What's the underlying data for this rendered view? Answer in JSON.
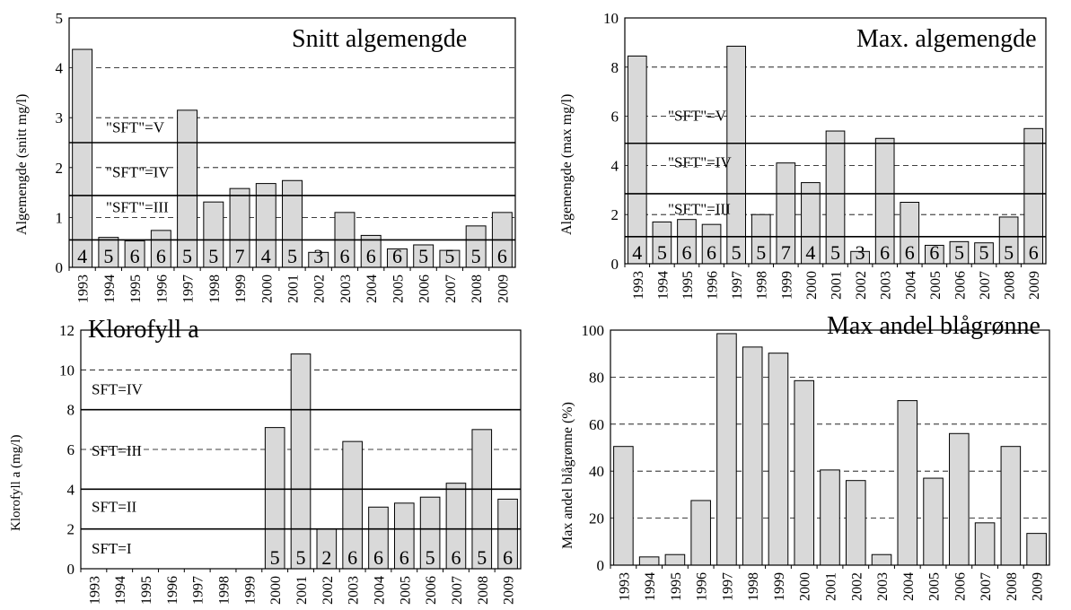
{
  "chart_data": [
    {
      "type": "bar",
      "title": "Snitt algemengde",
      "ylabel": "Algemengde  (snitt mg/l)",
      "categories": [
        "1993",
        "1994",
        "1995",
        "1996",
        "1997",
        "1998",
        "1999",
        "2000",
        "2001",
        "2002",
        "2003",
        "2004",
        "2005",
        "2006",
        "2007",
        "2008",
        "2009"
      ],
      "values": [
        4.37,
        0.6,
        0.53,
        0.74,
        3.15,
        1.31,
        1.58,
        1.68,
        1.74,
        0.3,
        1.1,
        0.64,
        0.37,
        0.45,
        0.34,
        0.83,
        1.1
      ],
      "sample_counts": [
        "4",
        "5",
        "6",
        "6",
        "5",
        "5",
        "7",
        "4",
        "5",
        "3",
        "6",
        "6",
        "6",
        "5",
        "5",
        "5",
        "6"
      ],
      "ylim": [
        0,
        5
      ],
      "yticks": [
        "0",
        "1",
        "2",
        "3",
        "4",
        "5"
      ],
      "grid": "dashed",
      "thresholds": [
        {
          "value": 2.5,
          "label": "\"SFT\"=V",
          "label_y": 2.8
        },
        {
          "value": 1.44,
          "label": "\"SFT\"=IV",
          "label_y": 1.9
        },
        {
          "value": 0.55,
          "label": "\"SFT\"=III",
          "label_y": 1.2
        }
      ]
    },
    {
      "type": "bar",
      "title": "Max. algemengde",
      "ylabel": "Algemengde  (max mg/l)",
      "categories": [
        "1993",
        "1994",
        "1995",
        "1996",
        "1997",
        "1998",
        "1999",
        "2000",
        "2001",
        "2002",
        "2003",
        "2004",
        "2005",
        "2006",
        "2007",
        "2008",
        "2009"
      ],
      "values": [
        8.45,
        1.7,
        1.8,
        1.6,
        8.85,
        2.0,
        4.1,
        3.3,
        5.4,
        0.5,
        5.1,
        2.5,
        0.75,
        0.9,
        0.85,
        1.9,
        5.5
      ],
      "sample_counts": [
        "4",
        "5",
        "6",
        "6",
        "5",
        "5",
        "7",
        "4",
        "5",
        "3",
        "6",
        "6",
        "6",
        "5",
        "5",
        "5",
        "6"
      ],
      "ylim": [
        0,
        10
      ],
      "yticks": [
        "0",
        "2",
        "4",
        "6",
        "8",
        "10"
      ],
      "grid": "dashed",
      "thresholds": [
        {
          "value": 4.9,
          "label": "\"SFT\"=V",
          "label_y": 6.0
        },
        {
          "value": 2.85,
          "label": "\"SFT\"=IV",
          "label_y": 4.1
        },
        {
          "value": 1.1,
          "label": "\"SFT\"=III",
          "label_y": 2.2
        }
      ]
    },
    {
      "type": "bar",
      "title": "Klorofyll a",
      "ylabel": "Klorofyll a (mg/l)",
      "categories": [
        "1993",
        "1994",
        "1995",
        "1996",
        "1997",
        "1998",
        "1999",
        "2000",
        "2001",
        "2002",
        "2003",
        "2004",
        "2005",
        "2006",
        "2007",
        "2008",
        "2009"
      ],
      "values": [
        null,
        null,
        null,
        null,
        null,
        null,
        null,
        7.1,
        10.8,
        2.0,
        6.4,
        3.1,
        3.3,
        3.6,
        4.3,
        7.0,
        3.5
      ],
      "sample_counts": [
        "",
        "",
        "",
        "",
        "",
        "",
        "",
        "5",
        "5",
        "2",
        "6",
        "6",
        "6",
        "5",
        "6",
        "5",
        "6"
      ],
      "ylim": [
        0,
        12
      ],
      "yticks": [
        "0",
        "2",
        "4",
        "6",
        "8",
        "10",
        "12"
      ],
      "grid": "dashed",
      "thresholds": [
        {
          "value": 8,
          "label": "SFT=IV",
          "label_y": 9.0
        },
        {
          "value": 4,
          "label": "SFT=III",
          "label_y": 5.9
        },
        {
          "value": 2,
          "label": "SFT=II",
          "label_y": 3.1
        },
        {
          "value": null,
          "label": "SFT=I",
          "label_y": 1.0
        }
      ]
    },
    {
      "type": "bar",
      "title": "Max andel blågrønne",
      "ylabel": "Max andel blågrønne (%)",
      "categories": [
        "1993",
        "1994",
        "1995",
        "1996",
        "1997",
        "1998",
        "1999",
        "2000",
        "2001",
        "2002",
        "2003",
        "2004",
        "2005",
        "2006",
        "2007",
        "2008",
        "2009"
      ],
      "values": [
        50.5,
        3.5,
        4.5,
        27.5,
        98.5,
        92.8,
        90.2,
        78.5,
        40.5,
        36.0,
        4.5,
        70.0,
        37.0,
        56.0,
        18.0,
        50.5,
        13.5
      ],
      "sample_counts": [],
      "ylim": [
        0,
        100
      ],
      "yticks": [
        "0",
        "20",
        "40",
        "60",
        "80",
        "100"
      ],
      "grid": "dashed",
      "thresholds": []
    }
  ],
  "colors": {
    "bar_fill": "#d9d9d9",
    "bar_stroke": "#000000",
    "grid": "#000000"
  }
}
